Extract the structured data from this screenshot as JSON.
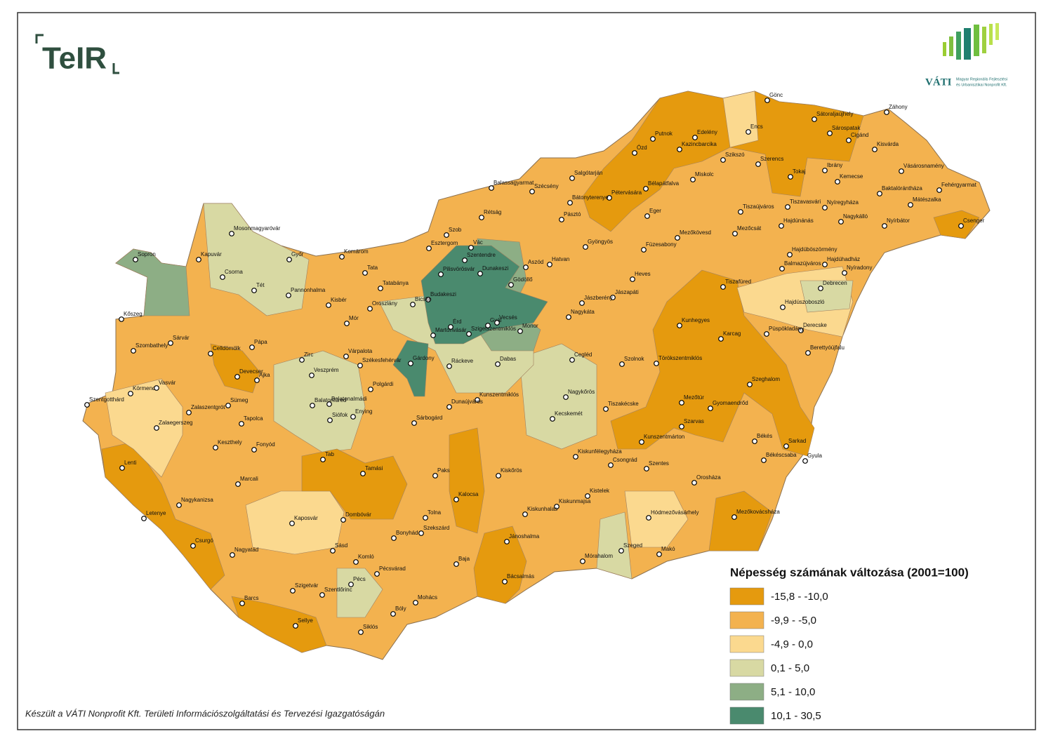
{
  "header": {
    "logo_left": "TeIR",
    "logo_right": "VÁTI",
    "logo_right_subtitle": [
      "Magyar Regionális Fejlesztési",
      "és Urbanisztikai Nonprofit Kft."
    ]
  },
  "legend": {
    "title": "Népesség számának változása (2001=100)",
    "classes": [
      {
        "label": "-15,8 - -10,0",
        "color": "#e59a0e"
      },
      {
        "label": "-9,9 - -5,0",
        "color": "#f3b24f"
      },
      {
        "label": "-4,9 - 0,0",
        "color": "#fbd98f"
      },
      {
        "label": "0,1 - 5,0",
        "color": "#d8d9a3"
      },
      {
        "label": "5,1 - 10,0",
        "color": "#8dae85"
      },
      {
        "label": "10,1 - 30,5",
        "color": "#4a8a6e"
      }
    ]
  },
  "cities": [
    "Gönc",
    "Sátoraljaújhely",
    "Záhony",
    "Sárospatak",
    "Cigánd",
    "Encs",
    "Edelény",
    "Putnok",
    "Kazincbarcika",
    "Ózd",
    "Kisvárda",
    "Szikszó",
    "Szerencs",
    "Tokaj",
    "Ibrány",
    "Vásárosnamény",
    "Miskolc",
    "Kemecse",
    "Salgótarján",
    "Balassagyarmat",
    "Szécsény",
    "Fehérgyarmat",
    "Bélapátfalva",
    "Pétervására",
    "Baktalórántháza",
    "Mátészalka",
    "Bátonyterenye",
    "Tiszavasvári",
    "Nyíregyháza",
    "Tiszaújváros",
    "Rétság",
    "Pásztó",
    "Eger",
    "Csenger",
    "Nagykálló",
    "Nyírbátor",
    "Hajdúnánás",
    "Mosonmagyaróvár",
    "Mezőcsát",
    "Mezőkövesd",
    "Szob",
    "Gyöngyös",
    "Esztergom",
    "Vác",
    "Füzesabony",
    "Hajdúböszörmény",
    "Komárom",
    "Sopron",
    "Kapuvár",
    "Győr",
    "Szentendre",
    "Hajdúhadház",
    "Dunakeszi",
    "Aszód",
    "Balmazújváros",
    "Nyíradony",
    "Hatvan",
    "Pilisvörösvár",
    "Csorna",
    "Tata",
    "Gödöllő",
    "Heves",
    "Tatabánya",
    "Tét",
    "Tiszafüred",
    "Pannonhalma",
    "Debrecen",
    "Budakeszi",
    "Jászapáti",
    "Kisbér",
    "Bicske",
    "Jászberény",
    "Oroszlány",
    "Hajdúszoboszló",
    "Kőszeg",
    "Nagykáta",
    "Mór",
    "Érd",
    "Gyál",
    "Vecsés",
    "Monor",
    "Martonvásár",
    "Szigetszentmiklós",
    "Derecske",
    "Püspökladány",
    "Kunhegyes",
    "Karcag",
    "Szombathely",
    "Sárvár",
    "Celldömölk",
    "Pápa",
    "Várpalota",
    "Zirc",
    "Berettyóújfalu",
    "Cegléd",
    "Székesfehérvár",
    "Szolnok",
    "Törökszentmiklós",
    "Devecser",
    "Gárdony",
    "Ráckeve",
    "Dabas",
    "Ajka",
    "Veszprém",
    "Polgárdi",
    "Körmend",
    "Vasvár",
    "Szeghalom",
    "Nagykőrös",
    "Szentgotthárd",
    "Kunszentmiklós",
    "Mezőtúr",
    "Gyomaendrőd",
    "Balatonfüred",
    "Balatonalmádi",
    "Sümeg",
    "Zalaszentgrót",
    "Tiszakécske",
    "Dunaújváros",
    "Kecskemét",
    "Enying",
    "Siófok",
    "Tapolca",
    "Sárbogárd",
    "Szarvas",
    "Zalaegerszeg",
    "Kunszentmárton",
    "Keszthely",
    "Fonyód",
    "Békés",
    "Sarkad",
    "Tab",
    "Békéscsaba",
    "Gyula",
    "Lenti",
    "Kiskunfélegyháza",
    "Csongrád",
    "Szentes",
    "Tamási",
    "Paks",
    "Kiskőrös",
    "Marcali",
    "Orosháza",
    "Kalocsa",
    "Kiskunmajsa",
    "Kistelek",
    "Nagykanizsa",
    "Letenye",
    "Kiskunhalas",
    "Kaposvár",
    "Dombóvár",
    "Tolna",
    "Hódmezővásárhely",
    "Mezőkovácsháza",
    "Szekszárd",
    "Bonyhád",
    "Jánoshalma",
    "Csurgó",
    "Sásd",
    "Szeged",
    "Makó",
    "Nagyatád",
    "Mórahalom",
    "Komló",
    "Baja",
    "Pécsvárad",
    "Bácsalmás",
    "Pécs",
    "Szigetvár",
    "Szentlőrinc",
    "Mohács",
    "Barcs",
    "Bóly",
    "Sellye",
    "Siklós"
  ],
  "footer": "Készült a VÁTI Nonprofit Kft. Területi Információszolgáltatási és Tervezési Igazgatóságán"
}
